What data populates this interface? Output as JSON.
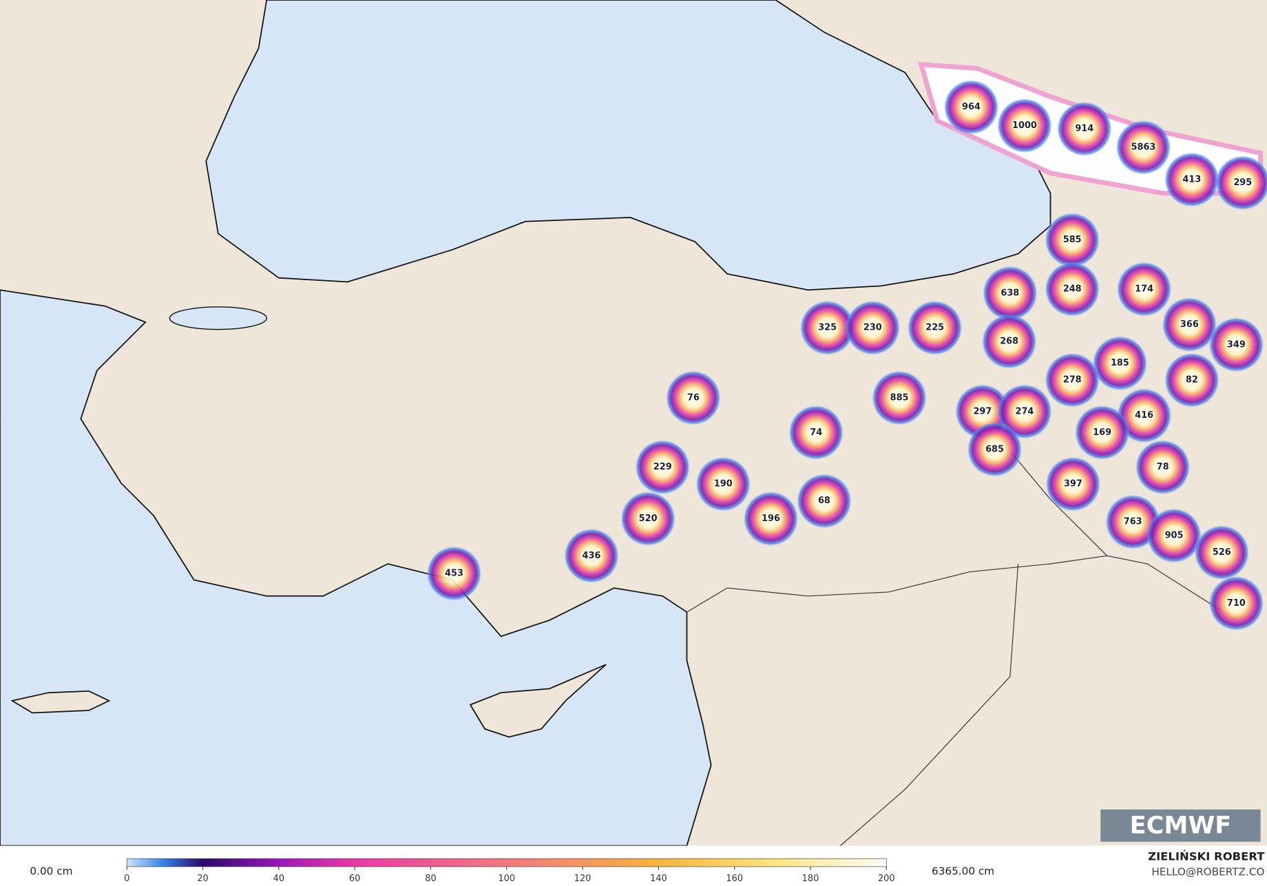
{
  "map": {
    "labels": [
      964,
      1000,
      914,
      5863,
      413,
      295,
      585,
      248,
      174,
      638,
      325,
      230,
      225,
      366,
      268,
      349,
      185,
      278,
      82,
      76,
      885,
      297,
      274,
      416,
      74,
      169,
      685,
      229,
      78,
      190,
      397,
      68,
      520,
      196,
      763,
      905,
      436,
      526,
      453,
      710
    ],
    "logo": "ECMWF"
  },
  "legend": {
    "min_label": "0.00 cm",
    "max_label": "6365.00 cm",
    "ticks": [
      0,
      20,
      40,
      60,
      80,
      100,
      120,
      140,
      160,
      180,
      200
    ]
  },
  "credit": {
    "name": "ZIELIŃSKI ROBERT",
    "email": "HELLO@ROBERTZ.CO"
  }
}
